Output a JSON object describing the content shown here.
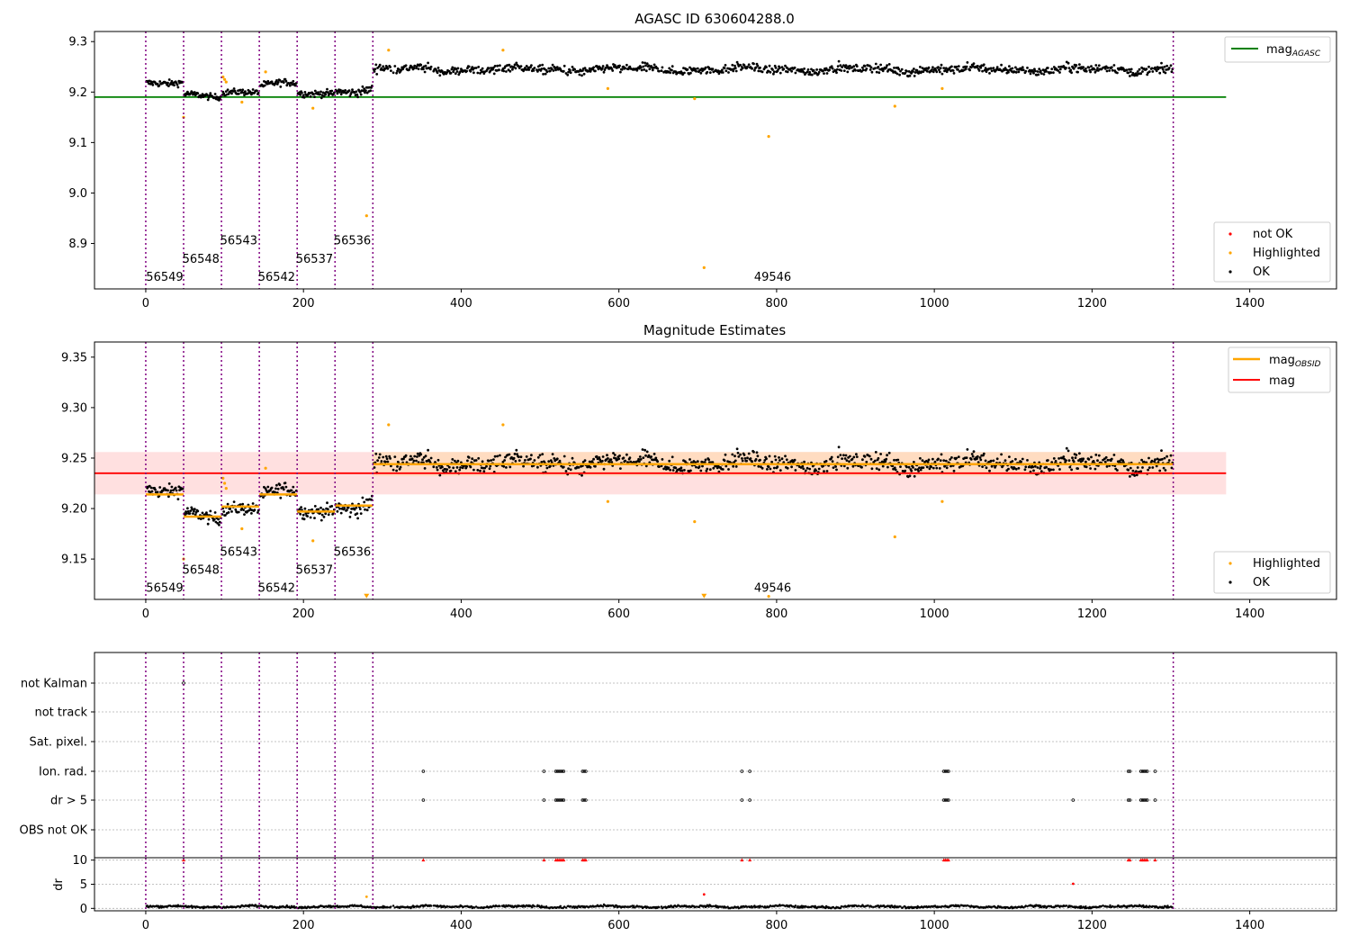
{
  "colors": {
    "ok": "#000000",
    "not_ok": "#ff0000",
    "highlighted": "#ffa500",
    "mag_agasc": "#008000",
    "mag_obsid": "#ffa500",
    "mag": "#ff0000",
    "obs_boundary": "#800080",
    "band_mag": "#ffcccc",
    "band_obsid": "#ffdab3"
  },
  "chart_data": [
    {
      "type": "scatter",
      "title": "AGASC ID 630604288.0",
      "xlim": [
        -65,
        1510
      ],
      "ylim": [
        8.81,
        9.32
      ],
      "xticks": [
        0,
        200,
        400,
        600,
        800,
        1000,
        1200,
        1400
      ],
      "yticks": [
        8.9,
        9.0,
        9.1,
        9.2,
        9.3
      ],
      "ytick_labels": [
        "8.9",
        "9.0",
        "9.1",
        "9.2",
        "9.3"
      ],
      "legend_upper": [
        {
          "label": "mag",
          "sub": "AGASC",
          "marker": "line",
          "color": "#008000"
        }
      ],
      "legend_lower": [
        {
          "label": "not OK",
          "marker": "dot",
          "color": "#ff0000"
        },
        {
          "label": "Highlighted",
          "marker": "dot",
          "color": "#ffa500"
        },
        {
          "label": "OK",
          "marker": "dot",
          "color": "#000000"
        }
      ],
      "hlines": [
        {
          "name": "mag_AGASC",
          "y": 9.19,
          "x": [
            -65,
            1370
          ],
          "color": "#008000"
        }
      ],
      "series_ok": [
        {
          "x": [
            0,
            48
          ],
          "mean": 9.216,
          "amp": 0.009
        },
        {
          "x": [
            48,
            96
          ],
          "mean": 9.193,
          "amp": 0.008
        },
        {
          "x": [
            96,
            144
          ],
          "mean": 9.201,
          "amp": 0.008
        },
        {
          "x": [
            144,
            192
          ],
          "mean": 9.215,
          "amp": 0.009
        },
        {
          "x": [
            192,
            240
          ],
          "mean": 9.197,
          "amp": 0.009
        },
        {
          "x": [
            240,
            288
          ],
          "mean": 9.204,
          "amp": 0.011
        },
        {
          "x": [
            288,
            1303
          ],
          "mean": 9.245,
          "amp": 0.011
        }
      ],
      "highlighted": [
        [
          48,
          9.15
        ],
        [
          98,
          9.23
        ],
        [
          100,
          9.225
        ],
        [
          102,
          9.22
        ],
        [
          122,
          9.18
        ],
        [
          152,
          9.24
        ],
        [
          212,
          9.168
        ],
        [
          280,
          8.955
        ],
        [
          308,
          9.283
        ],
        [
          453,
          9.283
        ],
        [
          586,
          9.207
        ],
        [
          696,
          9.187
        ],
        [
          708,
          8.852
        ],
        [
          790,
          9.112
        ],
        [
          950,
          9.172
        ],
        [
          1010,
          9.207
        ]
      ],
      "obs_boundaries": [
        0,
        48,
        96,
        144,
        192,
        240,
        288,
        1303
      ],
      "obs_labels": [
        {
          "text": "56549",
          "x": 24,
          "y": 8.833
        },
        {
          "text": "56548",
          "x": 70,
          "y": 8.869
        },
        {
          "text": "56543",
          "x": 118,
          "y": 8.905
        },
        {
          "text": "56542",
          "x": 166,
          "y": 8.833
        },
        {
          "text": "56537",
          "x": 214,
          "y": 8.869
        },
        {
          "text": "56536",
          "x": 262,
          "y": 8.905
        },
        {
          "text": "49546",
          "x": 795,
          "y": 8.833
        }
      ]
    },
    {
      "type": "scatter",
      "title": "Magnitude Estimates",
      "xlim": [
        -65,
        1510
      ],
      "ylim": [
        9.11,
        9.365
      ],
      "xticks": [
        0,
        200,
        400,
        600,
        800,
        1000,
        1200,
        1400
      ],
      "yticks": [
        9.15,
        9.2,
        9.25,
        9.3,
        9.35
      ],
      "ytick_labels": [
        "9.15",
        "9.20",
        "9.25",
        "9.30",
        "9.35"
      ],
      "legend_upper": [
        {
          "label": "mag",
          "sub": "OBSID",
          "marker": "line",
          "color": "#ffa500"
        },
        {
          "label": "mag",
          "marker": "line",
          "color": "#ff0000"
        }
      ],
      "legend_lower": [
        {
          "label": "Highlighted",
          "marker": "dot",
          "color": "#ffa500"
        },
        {
          "label": "OK",
          "marker": "dot",
          "color": "#000000"
        }
      ],
      "mag_line": {
        "y": 9.235,
        "band": [
          9.214,
          9.256
        ],
        "x": [
          -65,
          1370
        ]
      },
      "obsid_segments": [
        {
          "x": [
            0,
            48
          ],
          "y": 9.214
        },
        {
          "x": [
            48,
            96
          ],
          "y": 9.192
        },
        {
          "x": [
            96,
            144
          ],
          "y": 9.202
        },
        {
          "x": [
            144,
            192
          ],
          "y": 9.214
        },
        {
          "x": [
            192,
            240
          ],
          "y": 9.197
        },
        {
          "x": [
            240,
            288
          ],
          "y": 9.203
        },
        {
          "x": [
            288,
            1303
          ],
          "y": 9.244,
          "band": [
            9.232,
            9.256
          ]
        }
      ],
      "highlighted": [
        [
          48,
          9.15
        ],
        [
          98,
          9.23
        ],
        [
          100,
          9.225
        ],
        [
          102,
          9.22
        ],
        [
          122,
          9.18
        ],
        [
          152,
          9.24
        ],
        [
          212,
          9.168
        ],
        [
          308,
          9.283
        ],
        [
          453,
          9.283
        ],
        [
          586,
          9.207
        ],
        [
          696,
          9.187
        ],
        [
          790,
          9.113
        ],
        [
          950,
          9.172
        ],
        [
          1010,
          9.207
        ]
      ],
      "off_scale_markers": [
        [
          280,
          9.112
        ],
        [
          708,
          9.112
        ]
      ],
      "obs_boundaries": [
        0,
        48,
        96,
        144,
        192,
        240,
        288,
        1303
      ],
      "obs_labels": [
        {
          "text": "56549",
          "x": 24,
          "y": 9.121
        },
        {
          "text": "56548",
          "x": 70,
          "y": 9.139
        },
        {
          "text": "56543",
          "x": 118,
          "y": 9.157
        },
        {
          "text": "56542",
          "x": 166,
          "y": 9.121
        },
        {
          "text": "56537",
          "x": 214,
          "y": 9.139
        },
        {
          "text": "56536",
          "x": 262,
          "y": 9.157
        },
        {
          "text": "49546",
          "x": 795,
          "y": 9.121
        }
      ]
    },
    {
      "type": "scatter",
      "title": "",
      "xlim": [
        -65,
        1510
      ],
      "categories": [
        "not Kalman",
        "not track",
        "Sat. pixel.",
        "Ion. rad.",
        "dr > 5",
        "OBS not OK"
      ],
      "flags": {
        "not Kalman": [
          48
        ],
        "not track": [],
        "Sat. pixel.": [],
        "Ion. rad.": [
          352,
          505,
          520,
          522,
          524,
          526,
          528,
          530,
          554,
          556,
          558,
          756,
          766,
          1012,
          1014,
          1016,
          1018,
          1246,
          1248,
          1262,
          1264,
          1266,
          1268,
          1270,
          1280
        ],
        "dr > 5": [
          352,
          505,
          520,
          522,
          524,
          526,
          528,
          530,
          554,
          556,
          558,
          756,
          766,
          1012,
          1014,
          1016,
          1018,
          1176,
          1246,
          1248,
          1262,
          1264,
          1266,
          1268,
          1270,
          1280
        ],
        "OBS not OK": []
      },
      "obs_boundaries": [
        0,
        48,
        96,
        144,
        192,
        240,
        288,
        1303
      ]
    },
    {
      "type": "scatter",
      "title": "",
      "ylabel": "dr",
      "xlim": [
        -65,
        1510
      ],
      "ylim": [
        -0.5,
        10.5
      ],
      "xticks": [
        0,
        200,
        400,
        600,
        800,
        1000,
        1200,
        1400
      ],
      "yticks": [
        0,
        5,
        10
      ],
      "ytick_labels": [
        "0",
        "5",
        "10"
      ],
      "baseline": {
        "mean": 0.35,
        "amp": 0.35
      },
      "clipped_red": [
        48,
        352,
        505,
        520,
        522,
        524,
        526,
        528,
        530,
        554,
        556,
        558,
        756,
        766,
        1012,
        1014,
        1016,
        1018,
        1246,
        1248,
        1262,
        1264,
        1266,
        1268,
        1270,
        1280
      ],
      "red_points": [
        [
          708,
          2.9
        ],
        [
          1176,
          5.1
        ]
      ],
      "orange_points": [
        [
          280,
          2.4
        ]
      ],
      "obs_boundaries": [
        0,
        48,
        96,
        144,
        192,
        240,
        288,
        1303
      ]
    }
  ]
}
